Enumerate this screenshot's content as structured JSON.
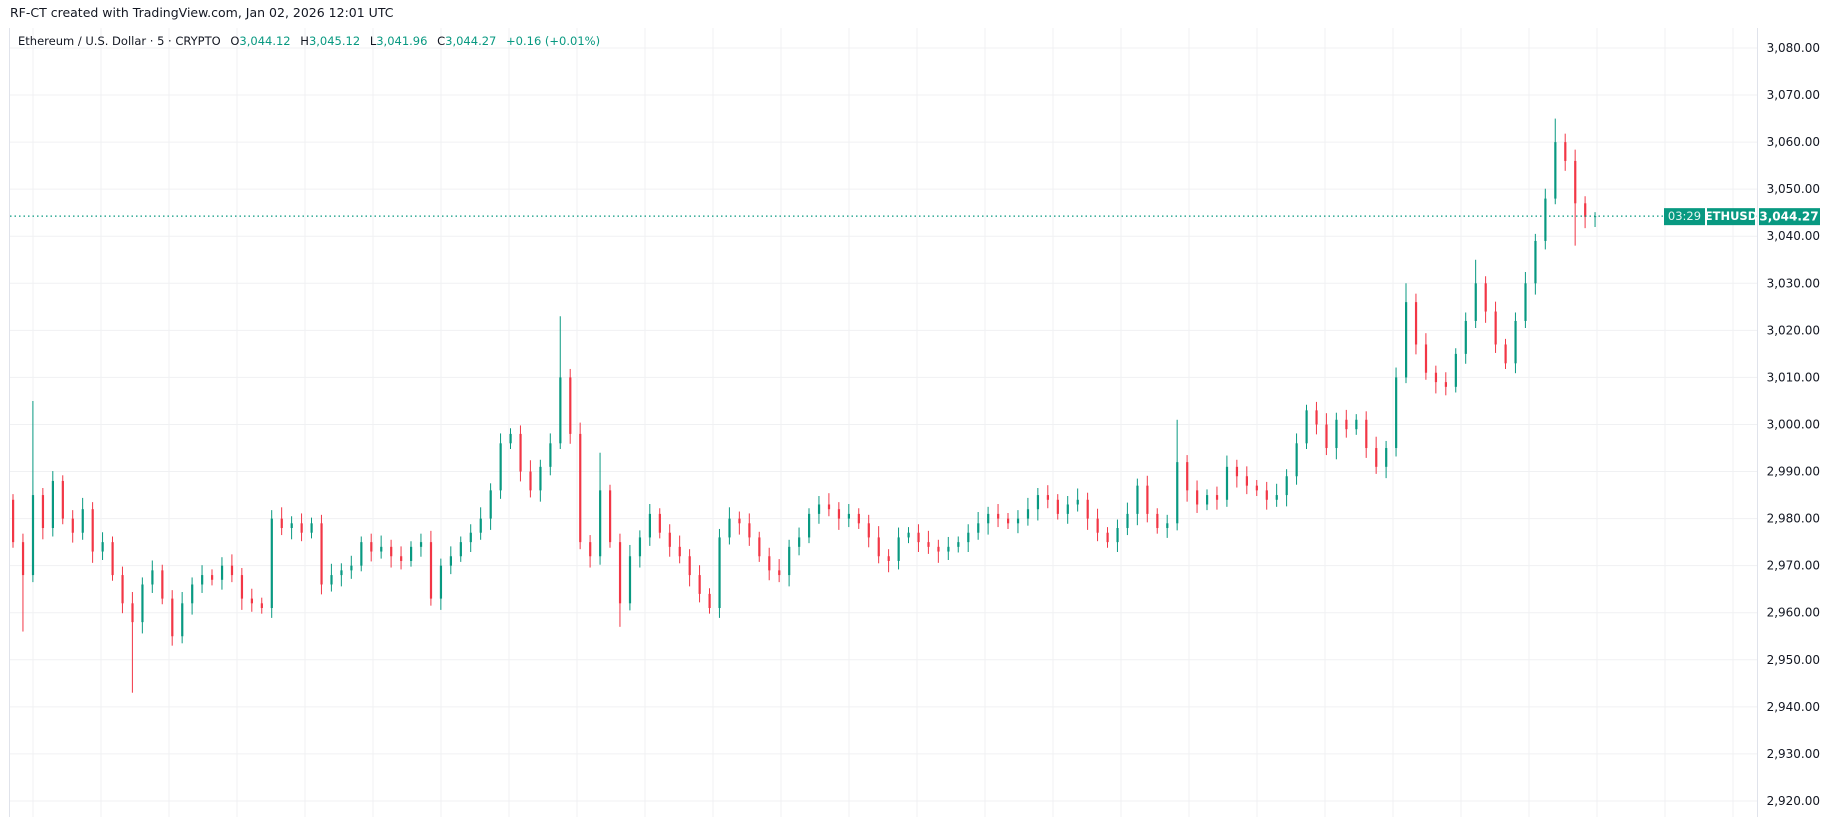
{
  "header": {
    "credit": "RF-CT created with TradingView.com, Jan 02, 2026 12:01 UTC"
  },
  "legend": {
    "symbol": "Ethereum / U.S. Dollar · 5 · CRYPTO",
    "o_label": "O",
    "o_value": "3,044.12",
    "h_label": "H",
    "h_value": "3,045.12",
    "l_label": "L",
    "l_value": "3,041.96",
    "c_label": "C",
    "c_value": "3,044.27",
    "change": "+0.16 (+0.01%)"
  },
  "last_price": {
    "ticker": "ETHUSD",
    "price": "3,044.27",
    "countdown": "03:29",
    "value": 3044.27
  },
  "colors": {
    "up": "#089981",
    "down": "#f23645",
    "grid": "#f0f1f3",
    "label_bg": "#089981"
  },
  "chart_data": {
    "type": "candlestick",
    "interval": "5",
    "ylim": [
      2918,
      3084
    ],
    "y_ticks": [
      "3,080.00",
      "3,070.00",
      "3,060.00",
      "3,050.00",
      "3,040.00",
      "3,030.00",
      "3,020.00",
      "3,010.00",
      "3,000.00",
      "2,990.00",
      "2,980.00",
      "2,970.00",
      "2,960.00",
      "2,950.00",
      "2,940.00",
      "2,930.00",
      "2,920.00"
    ],
    "y_tick_values": [
      3080,
      3070,
      3060,
      3050,
      3040,
      3030,
      3020,
      3010,
      3000,
      2990,
      2980,
      2970,
      2960,
      2950,
      2940,
      2930,
      2920
    ],
    "grid": true,
    "close": [
      2975,
      2968,
      2985,
      2978,
      2988,
      2980,
      2977,
      2982,
      2973,
      2975,
      2968,
      2962,
      2958,
      2966,
      2969,
      2963,
      2955,
      2962,
      2966,
      2968,
      2967,
      2970,
      2968,
      2963,
      2962,
      2961,
      2980,
      2978,
      2979,
      2977,
      2979,
      2966,
      2968,
      2969,
      2970,
      2975,
      2973,
      2974,
      2972,
      2971,
      2974,
      2975,
      2963,
      2970,
      2972,
      2975,
      2977,
      2980,
      2986,
      2996,
      2998,
      2990,
      2986,
      2991,
      2996,
      3010,
      2998,
      2975,
      2972,
      2986,
      2975,
      2962,
      2972,
      2976,
      2981,
      2977,
      2974,
      2972,
      2968,
      2964,
      2961,
      2976,
      2980,
      2979,
      2976,
      2972,
      2969,
      2968,
      2974,
      2976,
      2981,
      2983,
      2982,
      2980,
      2981,
      2979,
      2976,
      2972,
      2971,
      2976,
      2977,
      2975,
      2974,
      2973,
      2974,
      2975,
      2977,
      2979,
      2981,
      2980,
      2979,
      2980,
      2982,
      2985,
      2984,
      2981,
      2983,
      2984,
      2980,
      2977,
      2975,
      2978,
      2981,
      2987,
      2981,
      2978,
      2979,
      2992,
      2986,
      2983,
      2985,
      2984,
      2991,
      2989,
      2987,
      2986,
      2984,
      2985,
      2989,
      2996,
      3003,
      3000,
      2995,
      3001,
      2999,
      3001,
      2995,
      2991,
      2995,
      3010,
      3026,
      3017,
      3011,
      3009,
      3008,
      3015,
      3022,
      3030,
      3024,
      3017,
      3013,
      3022,
      3030,
      3039,
      3048,
      3060,
      3056,
      3047,
      3044.12,
      3044.27
    ],
    "first_open": 2984,
    "wick_extremes": [
      {
        "index": 2,
        "high": 3005
      },
      {
        "index": 1,
        "low": 2956
      },
      {
        "index": 12,
        "low": 2943
      },
      {
        "index": 16,
        "low": 2953
      },
      {
        "index": 55,
        "high": 3023
      },
      {
        "index": 59,
        "high": 2994
      },
      {
        "index": 61,
        "low": 2957
      },
      {
        "index": 117,
        "high": 3001
      },
      {
        "index": 140,
        "high": 3030
      },
      {
        "index": 147,
        "high": 3035
      },
      {
        "index": 155,
        "high": 3065
      },
      {
        "index": 157,
        "low": 3038
      },
      {
        "index": 159,
        "high": 3045.12,
        "low": 3041.96
      }
    ]
  }
}
